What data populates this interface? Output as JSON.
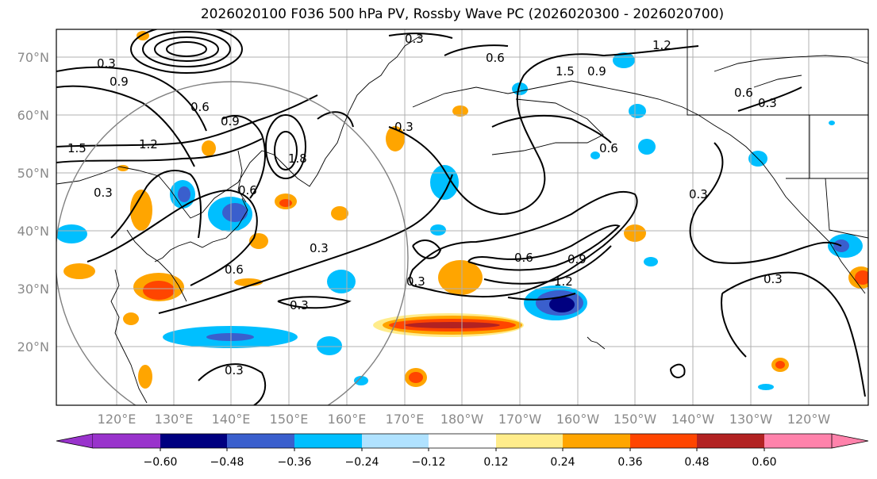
{
  "title": "2026020100 F036 500 hPa PV, Rossby Wave PC (2026020300 - 2026020700)",
  "lat_labels": [
    "70°N",
    "60°N",
    "50°N",
    "40°N",
    "30°N",
    "20°N"
  ],
  "lon_labels": [
    "120°E",
    "130°E",
    "140°E",
    "150°E",
    "160°E",
    "170°E",
    "180°W",
    "170°W",
    "160°W",
    "150°W",
    "140°W",
    "130°W",
    "120°W"
  ],
  "colorbar": {
    "ticks": [
      "−0.60",
      "−0.48",
      "−0.36",
      "−0.24",
      "−0.12",
      "0.12",
      "0.24",
      "0.36",
      "0.48",
      "0.60"
    ],
    "colors": [
      "#9933cc",
      "#000080",
      "#3a5fcd",
      "#00bfff",
      "#b0e2ff",
      "#ffffff",
      "#ffec8b",
      "#ffa500",
      "#ff4500",
      "#b22222",
      "#ff82ab"
    ]
  },
  "contour_labels": [
    "0.3",
    "0.6",
    "0.9",
    "1.2",
    "1.5",
    "1.8"
  ],
  "colors": {
    "purple": "#9933cc",
    "navy": "#000080",
    "royal_blue": "#3a5fcd",
    "deep_sky_blue": "#00bfff",
    "light_blue": "#b0e2ff",
    "yellow": "#ffec8b",
    "orange": "#ffa500",
    "red_orange": "#ff4500",
    "firebrick": "#b22222",
    "pink": "#ff82ab"
  }
}
